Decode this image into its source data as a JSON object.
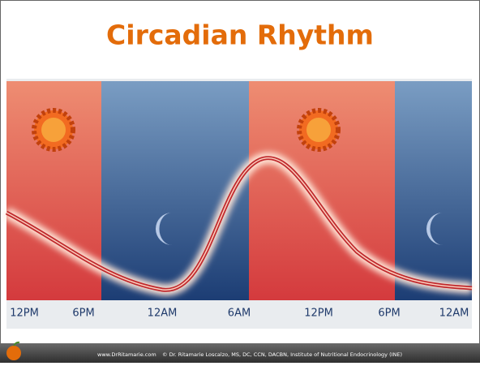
{
  "title": "Circadian Rhythm",
  "time_labels": [
    "12PM",
    "6PM",
    "12AM",
    "6AM",
    "12PM",
    "6PM",
    "12AM"
  ],
  "footer": {
    "website": "www.DrRitamarie.com",
    "copyright": "© Dr. Ritamarie Loscalzo, MS, DC, CCN, DACBN, Institute of Nutritional Endocrinology (INE)"
  }
}
